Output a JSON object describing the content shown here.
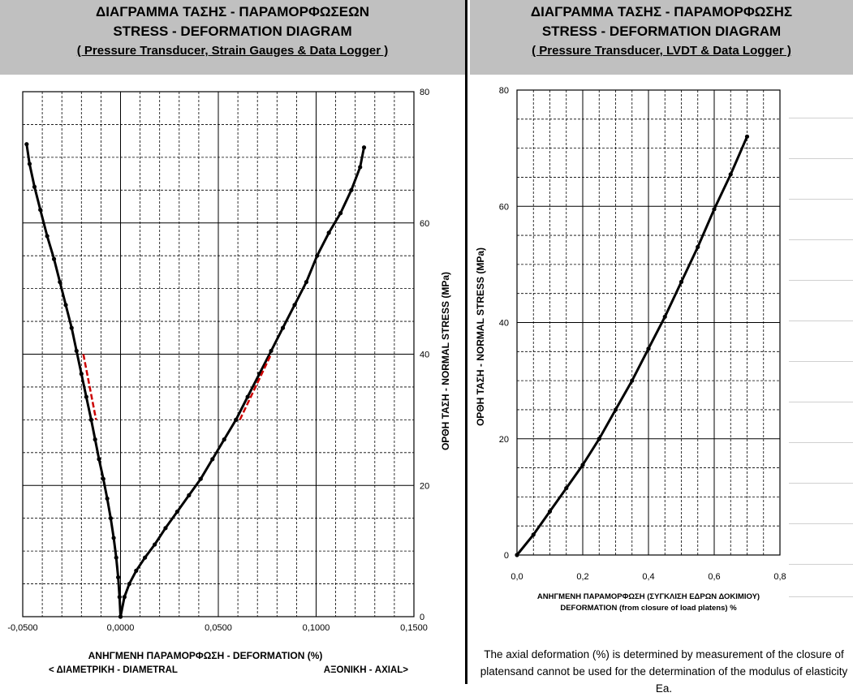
{
  "left_panel": {
    "title_greek": "ΔΙΑΓΡΑΜΜΑ ΤΑΣΗΣ - ΠΑΡΑΜΟΡΦΩΣΕΩΝ",
    "title_english": "STRESS - DEFORMATION DIAGRAM",
    "subtitle": "( Pressure Transducer, Strain Gauges & Data Logger )"
  },
  "right_panel": {
    "title_greek": "ΔΙΑΓΡΑΜΜΑ ΤΑΣΗΣ - ΠΑΡΑΜΟΡΦΩΣΗΣ",
    "title_english": "STRESS - DEFORMATION DIAGRAM",
    "subtitle": "( Pressure Transducer, LVDT & Data Logger )",
    "note_line1": "The axial deformation (%) is determined by measurement of the closure of",
    "note_line2": "platensand cannot be used for the determination of the modulus of elasticity Ea."
  },
  "colors": {
    "header_bg": "#c0c0c0",
    "curve": "#000000",
    "fit_segment": "#cc0000",
    "grid": "#000000"
  },
  "chart_data": [
    {
      "type": "line",
      "xlim": [
        -0.05,
        0.15
      ],
      "ylim": [
        0,
        80
      ],
      "x_ticks": [
        -0.05,
        0,
        0.05,
        0.1,
        0.15
      ],
      "x_tick_labels": [
        "-0,0500",
        "0,0000",
        "0,0500",
        "0,1000",
        "0,1500"
      ],
      "y_ticks": [
        0,
        20,
        40,
        60,
        80
      ],
      "y_tick_labels": [
        "0",
        "20",
        "40",
        "60",
        "80"
      ],
      "xlabel": "ΑΝΗΓΜΕΝΗ  ΠΑΡΑΜΟΡΦΩΣΗ   - DEFORMATION (%)",
      "xlabel_left_note": "< ΔΙΑΜΕΤΡΙΚΗ - DIAMETRAL",
      "xlabel_right_note": "ΑΞΟΝΙΚΗ - AXIAL>",
      "ylabel": "ΟΡΘΗ ΤΑΣΗ  -  NORMAL   STRESS (MPa)",
      "grid": true,
      "series": [
        {
          "x": [
            0,
            -0.0005,
            -0.0012,
            -0.0022,
            -0.0035,
            -0.005,
            -0.0068,
            -0.0088,
            -0.011,
            -0.013,
            -0.015,
            -0.0175,
            -0.02,
            -0.0225,
            -0.025,
            -0.028,
            -0.031,
            -0.034,
            -0.0375,
            -0.041,
            -0.044,
            -0.0465,
            -0.048
          ],
          "y": [
            0,
            3,
            6,
            9,
            12,
            15,
            18,
            21,
            24,
            27,
            30,
            33.5,
            37,
            40.5,
            44,
            47.5,
            51,
            54.5,
            58,
            62,
            65.5,
            69,
            72
          ]
        },
        {
          "x": [
            0,
            0.002,
            0.0045,
            0.008,
            0.0125,
            0.0175,
            0.023,
            0.029,
            0.035,
            0.041,
            0.047,
            0.053,
            0.059,
            0.065,
            0.071,
            0.077,
            0.083,
            0.089,
            0.095,
            0.1005,
            0.1065,
            0.1125,
            0.118,
            0.1225,
            0.1245
          ],
          "y": [
            0,
            3,
            5,
            7,
            9,
            11,
            13.5,
            16,
            18.5,
            21,
            24,
            27,
            30,
            33.5,
            37,
            40.5,
            44,
            47.5,
            51,
            55,
            58.5,
            61.5,
            65,
            68.5,
            71.5
          ]
        }
      ],
      "fit_segments": [
        {
          "x": [
            -0.019,
            -0.0125
          ],
          "y": [
            40,
            30
          ]
        },
        {
          "x": [
            0.061,
            0.077
          ],
          "y": [
            30,
            40
          ]
        }
      ]
    },
    {
      "type": "line",
      "xlim": [
        0,
        0.8
      ],
      "ylim": [
        0,
        80
      ],
      "x_ticks": [
        0,
        0.2,
        0.4,
        0.6,
        0.8
      ],
      "x_tick_labels": [
        "0,0",
        "0,2",
        "0,4",
        "0,6",
        "0,8"
      ],
      "y_ticks": [
        0,
        20,
        40,
        60,
        80
      ],
      "y_tick_labels": [
        "0",
        "20",
        "40",
        "60",
        "80"
      ],
      "xlabel_line1": "ΑΝΗΓΜΕΝΗ ΠΑΡΑΜΟΡΦΩΣΗ (ΣΥΓΚΛΙΣΗ ΕΔΡΩΝ ΔΟΚΙΜΙΟΥ)",
      "xlabel_line2": "DEFORMATION (from closure of load platens) %",
      "ylabel": "ΟΡΘΗ ΤΑΣΗ  -  NORMAL  STRESS (MPa)",
      "grid": true,
      "series": [
        {
          "x": [
            0,
            0.05,
            0.1,
            0.15,
            0.2,
            0.25,
            0.3,
            0.35,
            0.4,
            0.45,
            0.5,
            0.55,
            0.6,
            0.65,
            0.7
          ],
          "y": [
            0,
            3.5,
            7.5,
            11.5,
            15.5,
            20,
            25,
            30,
            35.5,
            41,
            47,
            53,
            59.5,
            65.5,
            72
          ]
        }
      ]
    }
  ]
}
